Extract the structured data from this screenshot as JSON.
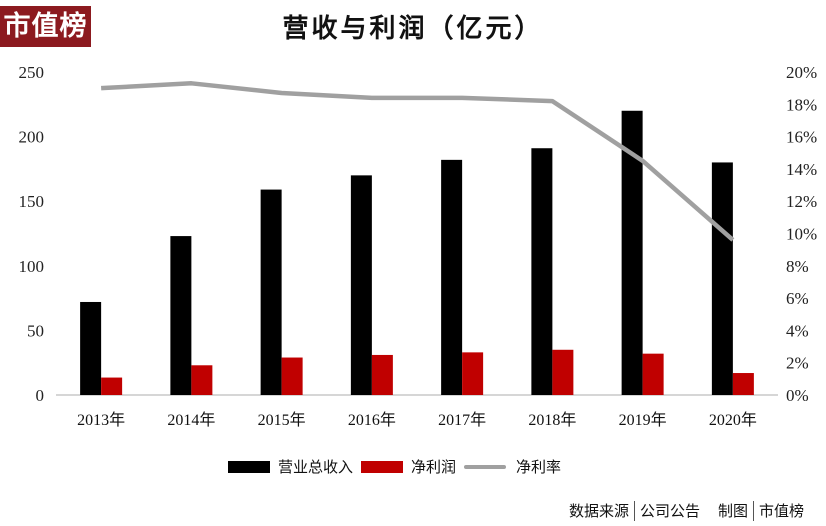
{
  "logo": "市值榜",
  "title": "营收与利润（亿元）",
  "legend": [
    {
      "label": "营业总收入",
      "color": "#000000",
      "type": "bar"
    },
    {
      "label": "净利润",
      "color": "#c00000",
      "type": "bar"
    },
    {
      "label": "净利率",
      "color": "#a0a0a0",
      "type": "line"
    }
  ],
  "source": {
    "label1": "数据来源",
    "value1": "公司公告",
    "label2": "制图",
    "value2": "市值榜"
  },
  "axes": {
    "left_ticks": [
      "0",
      "50",
      "100",
      "150",
      "200",
      "250"
    ],
    "right_ticks": [
      "0%",
      "2%",
      "4%",
      "6%",
      "8%",
      "10%",
      "12%",
      "14%",
      "16%",
      "18%",
      "20%"
    ]
  },
  "chart_data": {
    "type": "bar",
    "title": "营收与利润（亿元）",
    "categories": [
      "2013年",
      "2014年",
      "2015年",
      "2016年",
      "2017年",
      "2018年",
      "2019年",
      "2020年"
    ],
    "series": [
      {
        "name": "营业总收入",
        "type": "bar",
        "axis": "left",
        "color": "#000000",
        "values": [
          72,
          123,
          159,
          170,
          182,
          191,
          220,
          180
        ]
      },
      {
        "name": "净利润",
        "type": "bar",
        "axis": "left",
        "color": "#c00000",
        "values": [
          13.5,
          23,
          29,
          31,
          33,
          35,
          32,
          17
        ]
      },
      {
        "name": "净利率",
        "type": "line",
        "axis": "right",
        "color": "#a0a0a0",
        "values": [
          19.0,
          19.3,
          18.7,
          18.4,
          18.4,
          18.2,
          14.5,
          9.6
        ],
        "unit": "%"
      }
    ],
    "xlabel": "",
    "ylabel": "",
    "ylim": [
      0,
      250
    ],
    "y2lim": [
      0,
      20
    ],
    "grid": false,
    "legend_position": "bottom"
  }
}
